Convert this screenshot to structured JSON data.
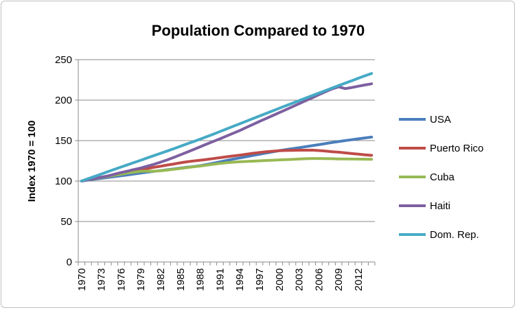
{
  "chart_data": {
    "type": "line",
    "title": "Population Compared to 1970",
    "xlabel": "",
    "ylabel": "Index 1970 = 100",
    "ylim": [
      0,
      250
    ],
    "yticks": [
      "0",
      "50",
      "100",
      "150",
      "200",
      "250"
    ],
    "xticks": [
      "1970",
      "1973",
      "1976",
      "1979",
      "1982",
      "1985",
      "1988",
      "1991",
      "1994",
      "1997",
      "2000",
      "2003",
      "2006",
      "2009",
      "2012"
    ],
    "grid": "horizontal",
    "legend_position": "right",
    "x": [
      1970,
      1971,
      1972,
      1973,
      1974,
      1975,
      1976,
      1977,
      1978,
      1979,
      1980,
      1981,
      1982,
      1983,
      1984,
      1985,
      1986,
      1987,
      1988,
      1989,
      1990,
      1991,
      1992,
      1993,
      1994,
      1995,
      1996,
      1997,
      1998,
      1999,
      2000,
      2001,
      2002,
      2003,
      2004,
      2005,
      2006,
      2007,
      2008,
      2009,
      2010,
      2011,
      2012,
      2013,
      2014
    ],
    "series": [
      {
        "name": "USA",
        "color": "#4a7ebb",
        "values": [
          100,
          101.3,
          102.4,
          103.4,
          104.4,
          105.5,
          106.5,
          107.6,
          108.7,
          109.9,
          111,
          112,
          113,
          114,
          115,
          116,
          117,
          118,
          119,
          120.5,
          122.1,
          123.8,
          125.5,
          127.1,
          128.6,
          130.1,
          131.6,
          133.1,
          134.6,
          136.1,
          137.6,
          138.9,
          140.1,
          141.3,
          142.5,
          143.7,
          145,
          146.3,
          147.6,
          148.8,
          150,
          151.1,
          152.2,
          153.3,
          154.3
        ]
      },
      {
        "name": "Puerto Rico",
        "color": "#be4b48",
        "values": [
          100,
          101.8,
          103.2,
          104.5,
          105.8,
          107.3,
          109.2,
          110.8,
          112.3,
          113.6,
          115.5,
          117,
          118.3,
          119.8,
          121.1,
          122.5,
          123.8,
          124.8,
          125.8,
          126.7,
          127.8,
          128.9,
          130,
          131,
          132,
          133.2,
          134.3,
          135.3,
          136.2,
          136.9,
          137.5,
          137.8,
          138,
          138.1,
          138.1,
          138.2,
          137.7,
          137,
          136.3,
          135.7,
          134.8,
          134,
          133.2,
          132.5,
          131.8
        ]
      },
      {
        "name": "Cuba",
        "color": "#98b954",
        "values": [
          100,
          101.8,
          103.3,
          104.6,
          105.8,
          107.2,
          108.5,
          109.9,
          111,
          112,
          112.3,
          112.2,
          112.7,
          113.6,
          114.6,
          115.6,
          116.6,
          117.6,
          118.6,
          119.7,
          120.8,
          121.8,
          122.6,
          123.3,
          123.8,
          124.2,
          124.6,
          125,
          125.4,
          125.8,
          126.2,
          126.5,
          126.8,
          127.2,
          127.6,
          127.9,
          127.9,
          127.8,
          127.6,
          127.4,
          127.3,
          127.2,
          127.1,
          127,
          126.9
        ]
      },
      {
        "name": "Haiti",
        "color": "#7d60a0",
        "values": [
          100,
          101.7,
          103.3,
          104.8,
          106.4,
          108.5,
          110.5,
          112.4,
          114.3,
          116.2,
          118.5,
          120.8,
          123.4,
          126.2,
          129.2,
          132.5,
          135.7,
          139,
          142.4,
          145.8,
          149,
          152.2,
          155.7,
          159.1,
          162.5,
          166.3,
          170,
          173.7,
          177.3,
          180.9,
          184.6,
          188.2,
          191.9,
          195.6,
          199.3,
          203,
          206.7,
          210.3,
          213.8,
          216.4,
          214.2,
          215.6,
          217.2,
          218.7,
          220.2
        ]
      },
      {
        "name": "Dom. Rep.",
        "color": "#46aac5",
        "values": [
          100,
          103,
          105.8,
          108.7,
          111.6,
          114.5,
          117.4,
          120.2,
          123,
          125.8,
          128.7,
          131.5,
          134.3,
          137.1,
          140,
          143,
          145.9,
          148.8,
          151.8,
          154.9,
          158,
          161.2,
          164.4,
          167.6,
          170.8,
          174,
          177.2,
          180.4,
          183.6,
          186.8,
          190,
          193.1,
          196.2,
          199.3,
          202.5,
          205.6,
          208.7,
          211.8,
          214.9,
          218,
          221,
          224,
          227.1,
          230.1,
          233
        ]
      }
    ]
  }
}
